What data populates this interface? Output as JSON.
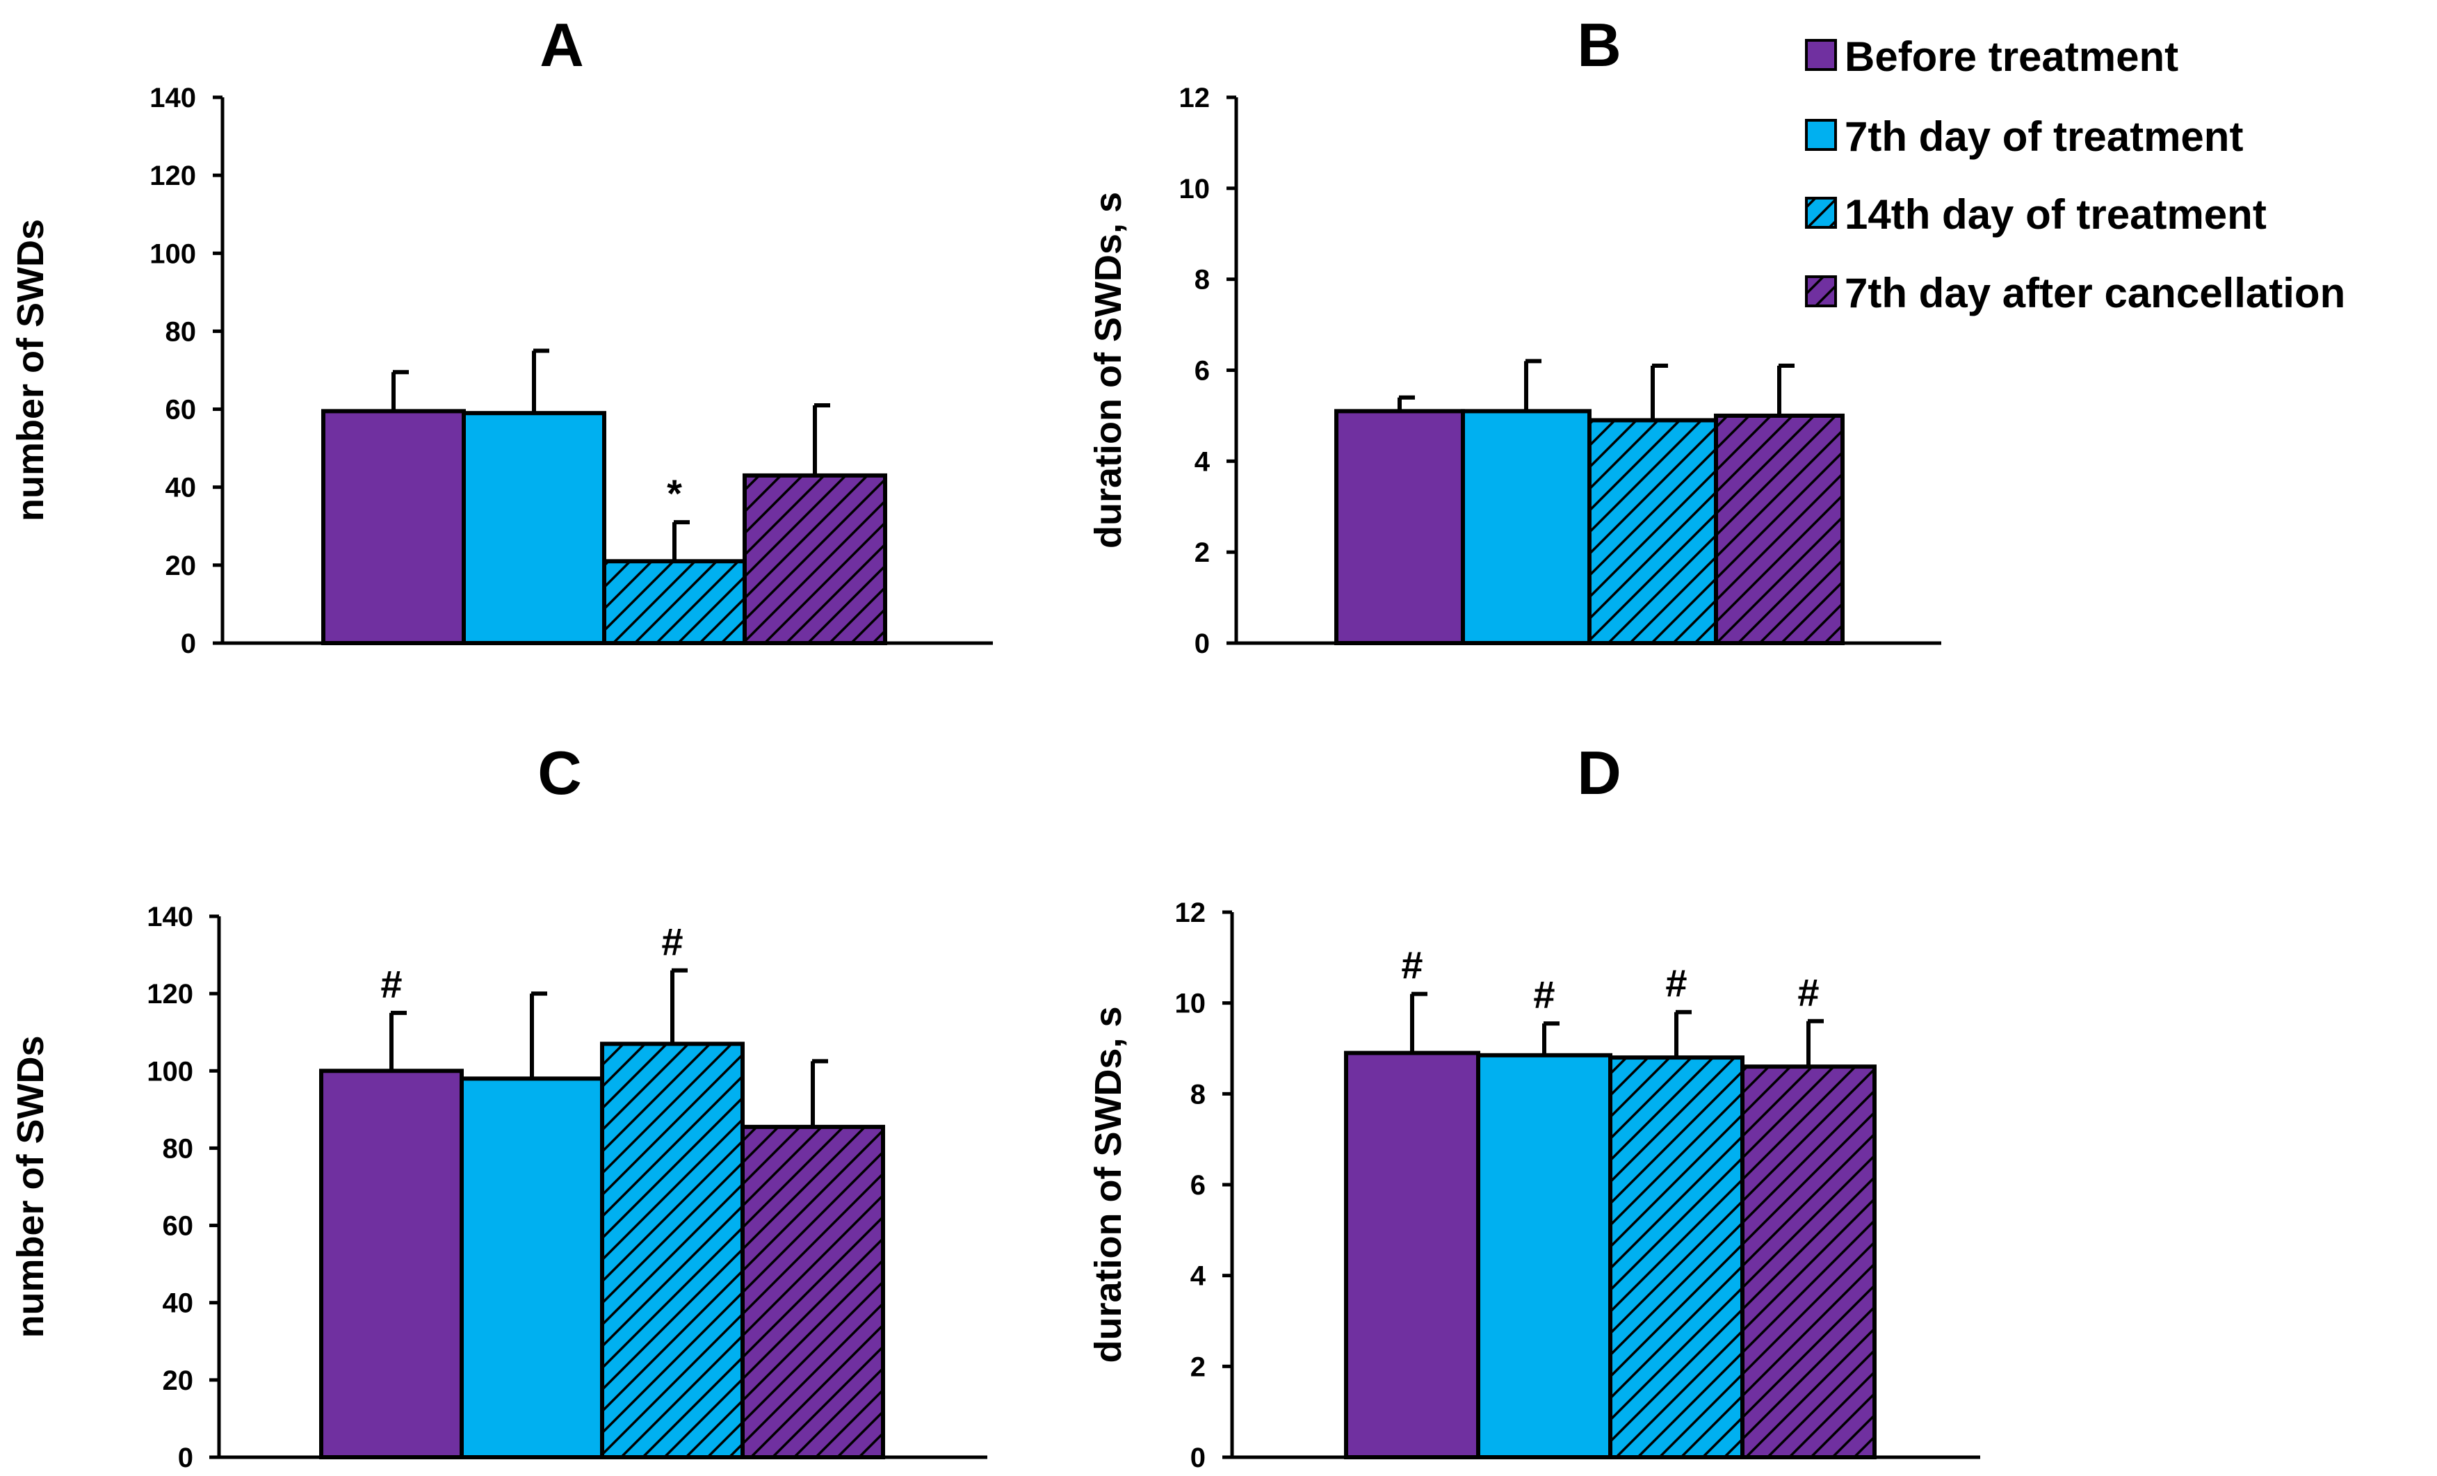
{
  "legend": {
    "items": [
      {
        "label": "Before treatment",
        "color": "#7030a0",
        "pattern": "solid"
      },
      {
        "label": "7th day of treatment",
        "color": "#00b0f0",
        "pattern": "solid"
      },
      {
        "label": "14th day of treatment",
        "color": "#00b0f0",
        "pattern": "hatch"
      },
      {
        "label": "7th day after cancellation",
        "color": "#7030a0",
        "pattern": "hatch"
      }
    ]
  },
  "chart_data": [
    {
      "panel": "A",
      "type": "bar",
      "title": "A",
      "xlabel": "",
      "ylabel": "number of SWDs",
      "ylim": [
        0,
        140
      ],
      "yticks": [
        0,
        20,
        40,
        60,
        80,
        100,
        120,
        140
      ],
      "categories": [
        "Before treatment",
        "7th day of treatment",
        "14th day of treatment",
        "7th day after cancellation"
      ],
      "values": [
        59.5,
        59,
        21,
        43
      ],
      "errors": [
        10,
        16,
        10,
        18
      ],
      "annotations": [
        "",
        "",
        "*",
        ""
      ]
    },
    {
      "panel": "B",
      "type": "bar",
      "title": "B",
      "xlabel": "",
      "ylabel": "duration of SWDs, s",
      "ylim": [
        0,
        12
      ],
      "yticks": [
        0,
        2,
        4,
        6,
        8,
        10,
        12
      ],
      "categories": [
        "Before treatment",
        "7th day of treatment",
        "14th day of treatment",
        "7th day after cancellation"
      ],
      "values": [
        5.1,
        5.1,
        4.9,
        5.0
      ],
      "errors": [
        0.3,
        1.1,
        1.2,
        1.1
      ],
      "annotations": [
        "",
        "",
        "",
        ""
      ]
    },
    {
      "panel": "C",
      "type": "bar",
      "title": "C",
      "xlabel": "",
      "ylabel": "number of SWDs",
      "ylim": [
        0,
        140
      ],
      "yticks": [
        0,
        20,
        40,
        60,
        80,
        100,
        120,
        140
      ],
      "categories": [
        "Before treatment",
        "7th day of treatment",
        "14th day of treatment",
        "7th day after cancellation"
      ],
      "values": [
        100,
        98,
        107,
        85.5
      ],
      "errors": [
        15,
        22,
        19,
        17
      ],
      "annotations": [
        "#",
        "",
        "#",
        ""
      ]
    },
    {
      "panel": "D",
      "type": "bar",
      "title": "D",
      "xlabel": "",
      "ylabel": "duration of SWDs, s",
      "ylim": [
        0,
        12
      ],
      "yticks": [
        0,
        2,
        4,
        6,
        8,
        10,
        12
      ],
      "categories": [
        "Before treatment",
        "7th day of treatment",
        "14th day of treatment",
        "7th day after cancellation"
      ],
      "values": [
        8.9,
        8.85,
        8.8,
        8.6
      ],
      "errors": [
        1.3,
        0.7,
        1.0,
        1.0
      ],
      "annotations": [
        "#",
        "#",
        "#",
        "#"
      ]
    }
  ]
}
